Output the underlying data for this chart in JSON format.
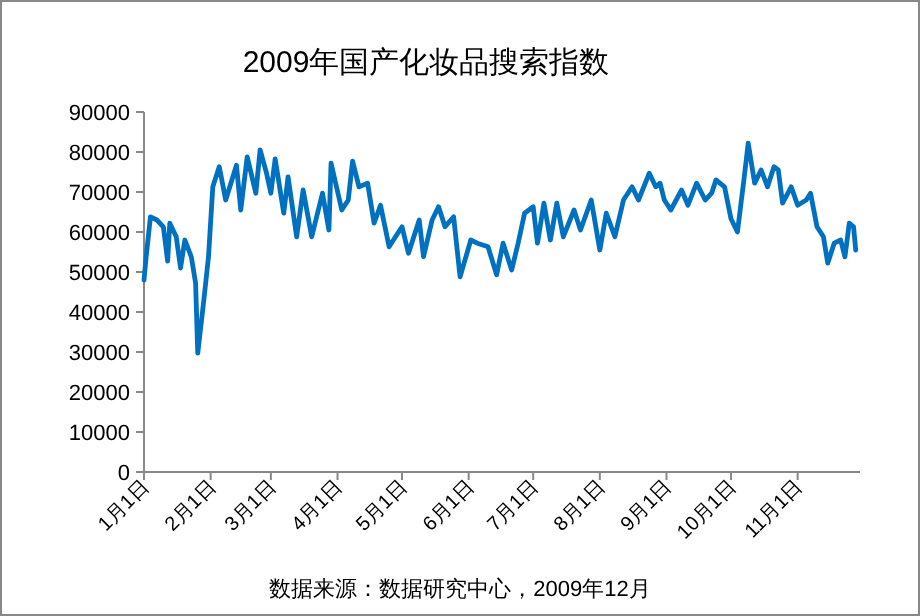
{
  "chart_data": {
    "type": "line",
    "title": "2009年国产化妆品搜索指数",
    "annotations": [
      "数据来源：数据研究中心，2009年12月"
    ],
    "x": [
      "2009-01-01",
      "2009-01-02",
      "2009-01-04",
      "2009-01-07",
      "2009-01-10",
      "2009-01-12",
      "2009-01-13",
      "2009-01-16",
      "2009-01-18",
      "2009-01-20",
      "2009-01-23",
      "2009-01-25",
      "2009-01-26",
      "2009-01-29",
      "2009-01-31",
      "2009-02-02",
      "2009-02-05",
      "2009-02-08",
      "2009-02-13",
      "2009-02-15",
      "2009-02-18",
      "2009-02-22",
      "2009-02-24",
      "2009-02-27",
      "2009-03-01",
      "2009-03-03",
      "2009-03-07",
      "2009-03-09",
      "2009-03-13",
      "2009-03-16",
      "2009-03-20",
      "2009-03-25",
      "2009-03-28",
      "2009-03-29",
      "2009-04-03",
      "2009-04-06",
      "2009-04-08",
      "2009-04-11",
      "2009-04-15",
      "2009-04-18",
      "2009-04-21",
      "2009-04-25",
      "2009-04-27",
      "2009-05-01",
      "2009-05-04",
      "2009-05-09",
      "2009-05-11",
      "2009-05-15",
      "2009-05-18",
      "2009-05-21",
      "2009-05-25",
      "2009-05-28",
      "2009-06-02",
      "2009-06-05",
      "2009-06-10",
      "2009-06-14",
      "2009-06-17",
      "2009-06-21",
      "2009-06-24",
      "2009-06-27",
      "2009-07-01",
      "2009-07-03",
      "2009-07-06",
      "2009-07-09",
      "2009-07-12",
      "2009-07-15",
      "2009-07-20",
      "2009-07-23",
      "2009-07-28",
      "2009-08-01",
      "2009-08-04",
      "2009-08-08",
      "2009-08-12",
      "2009-08-16",
      "2009-08-19",
      "2009-08-24",
      "2009-08-27",
      "2009-08-29",
      "2009-08-31",
      "2009-09-03",
      "2009-09-08",
      "2009-09-11",
      "2009-09-15",
      "2009-09-19",
      "2009-09-22",
      "2009-09-24",
      "2009-09-28",
      "2009-10-01",
      "2009-10-04",
      "2009-10-07",
      "2009-10-09",
      "2009-10-12",
      "2009-10-15",
      "2009-10-18",
      "2009-10-21",
      "2009-10-23",
      "2009-10-25",
      "2009-10-29",
      "2009-11-01",
      "2009-11-05",
      "2009-11-07",
      "2009-11-10",
      "2009-11-13",
      "2009-11-15",
      "2009-11-18",
      "2009-11-21",
      "2009-11-23",
      "2009-11-25",
      "2009-11-27",
      "2009-11-28"
    ],
    "series": [
      {
        "color": "#0070c0",
        "values": [
          48000,
          53800,
          63800,
          63000,
          61300,
          52700,
          62200,
          58800,
          51000,
          58000,
          53800,
          47200,
          29700,
          43800,
          53800,
          71300,
          76300,
          68000,
          76700,
          65500,
          78800,
          69700,
          80500,
          74700,
          69700,
          78300,
          64700,
          73800,
          58800,
          70500,
          58800,
          69700,
          60500,
          77200,
          65500,
          68000,
          77700,
          71300,
          72200,
          62200,
          66700,
          56300,
          58000,
          61300,
          54700,
          63000,
          53800,
          63000,
          66300,
          61300,
          63800,
          48800,
          58000,
          57200,
          56300,
          49300,
          57200,
          50500,
          57200,
          64700,
          66300,
          57200,
          67200,
          58000,
          67200,
          58800,
          65500,
          60500,
          68000,
          55500,
          64700,
          58800,
          68000,
          71300,
          68000,
          74700,
          71300,
          72200,
          68000,
          65500,
          70500,
          66700,
          72200,
          68000,
          69700,
          73000,
          71300,
          63300,
          60000,
          73000,
          82200,
          72200,
          75500,
          71300,
          76300,
          75500,
          67200,
          71300,
          66700,
          68000,
          69700,
          61300,
          58800,
          52200,
          57200,
          58000,
          53800,
          62200,
          61300,
          55500
        ]
      }
    ],
    "xlim": [
      "2009-01-01",
      "2009-11-30"
    ],
    "xticks": [
      {
        "value": "2009-01-01",
        "label": "1月1日"
      },
      {
        "value": "2009-02-01",
        "label": "2月1日"
      },
      {
        "value": "2009-03-01",
        "label": "3月1日"
      },
      {
        "value": "2009-04-01",
        "label": "4月1日"
      },
      {
        "value": "2009-05-01",
        "label": "5月1日"
      },
      {
        "value": "2009-06-01",
        "label": "6月1日"
      },
      {
        "value": "2009-07-01",
        "label": "7月1日"
      },
      {
        "value": "2009-08-01",
        "label": "8月1日"
      },
      {
        "value": "2009-09-01",
        "label": "9月1日"
      },
      {
        "value": "2009-10-01",
        "label": "10月1日"
      },
      {
        "value": "2009-11-01",
        "label": "11月1日"
      }
    ],
    "ylim": [
      0,
      90000
    ],
    "yticks": [
      0,
      10000,
      20000,
      30000,
      40000,
      50000,
      60000,
      70000,
      80000,
      90000
    ],
    "grid": false,
    "marker": "none",
    "line_style": "solid"
  }
}
